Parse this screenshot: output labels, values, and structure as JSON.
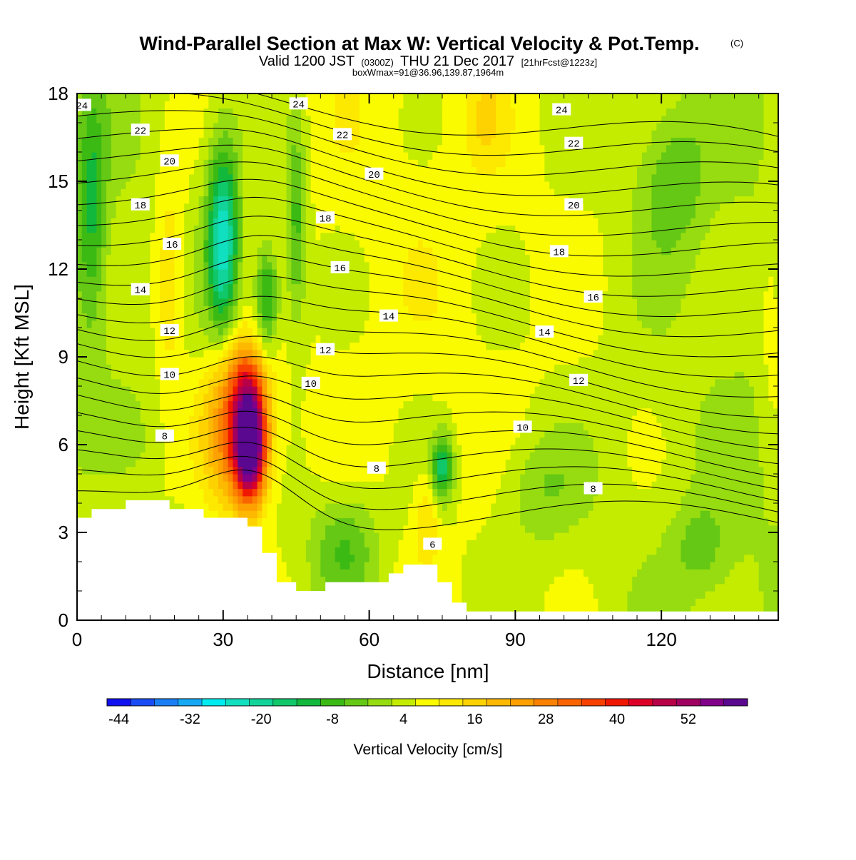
{
  "header": {
    "title": "Wind-Parallel Section at Max W: Vertical Velocity & Pot.Temp.",
    "title_mark": "(C)",
    "valid_prefix": "Valid 1200 JST",
    "valid_zulu": "(0300Z)",
    "valid_date": "THU 21 Dec 2017",
    "forecast": "[21hrFcst@1223z]",
    "box_info": "boxWmax=91@36.96,139.87,1964m"
  },
  "chart_data": {
    "type": "heatmap",
    "xlabel": "Distance [nm]",
    "ylabel": "Height [Kft MSL]",
    "xlim": [
      0,
      144
    ],
    "ylim": [
      0,
      18
    ],
    "x_ticks": [
      0,
      30,
      60,
      90,
      120
    ],
    "y_ticks": [
      0,
      3,
      6,
      9,
      12,
      15,
      18
    ],
    "colorbar": {
      "label": "Vertical Velocity [cm/s]",
      "min": -46,
      "max": 56,
      "step": 4,
      "tick_labels": [
        "-44",
        "-32",
        "-20",
        "-8",
        "4",
        "16",
        "28",
        "40",
        "52"
      ],
      "colors": [
        "#1010f0",
        "#1a4cf5",
        "#1a7ff5",
        "#14a8f5",
        "#00ecf0",
        "#10e0c0",
        "#12d49a",
        "#10c86a",
        "#12b83c",
        "#3cba14",
        "#64c814",
        "#96dc10",
        "#c4ec00",
        "#fbfb00",
        "#fde800",
        "#fdd200",
        "#fdb800",
        "#fda000",
        "#fb8200",
        "#fa6400",
        "#f84000",
        "#f01800",
        "#dc0028",
        "#b80048",
        "#a00060",
        "#80008a",
        "#5a0890"
      ]
    },
    "theta_contours": {
      "levels": [
        6,
        8,
        10,
        12,
        14,
        16,
        18,
        20,
        22,
        24
      ],
      "labels": [
        {
          "text": "24",
          "x": 1,
          "y": 17.6
        },
        {
          "text": "24",
          "x": 45.5,
          "y": 17.65
        },
        {
          "text": "24",
          "x": 99.5,
          "y": 17.45
        },
        {
          "text": "22",
          "x": 13,
          "y": 16.75
        },
        {
          "text": "22",
          "x": 54.5,
          "y": 16.6
        },
        {
          "text": "22",
          "x": 102,
          "y": 16.3
        },
        {
          "text": "20",
          "x": 19,
          "y": 15.7
        },
        {
          "text": "20",
          "x": 61,
          "y": 15.25
        },
        {
          "text": "20",
          "x": 102,
          "y": 14.2
        },
        {
          "text": "18",
          "x": 13,
          "y": 14.2
        },
        {
          "text": "18",
          "x": 51,
          "y": 13.75
        },
        {
          "text": "18",
          "x": 99,
          "y": 12.6
        },
        {
          "text": "16",
          "x": 19.5,
          "y": 12.85
        },
        {
          "text": "16",
          "x": 54,
          "y": 12.05
        },
        {
          "text": "16",
          "x": 106,
          "y": 11.05
        },
        {
          "text": "14",
          "x": 13,
          "y": 11.3
        },
        {
          "text": "14",
          "x": 64,
          "y": 10.4
        },
        {
          "text": "14",
          "x": 96,
          "y": 9.85
        },
        {
          "text": "12",
          "x": 19,
          "y": 9.9
        },
        {
          "text": "12",
          "x": 51,
          "y": 9.25
        },
        {
          "text": "12",
          "x": 103,
          "y": 8.2
        },
        {
          "text": "10",
          "x": 19,
          "y": 8.4
        },
        {
          "text": "10",
          "x": 48,
          "y": 8.1
        },
        {
          "text": "10",
          "x": 91.5,
          "y": 6.6
        },
        {
          "text": "8",
          "x": 18,
          "y": 6.3
        },
        {
          "text": "8",
          "x": 61.5,
          "y": 5.2
        },
        {
          "text": "8",
          "x": 106,
          "y": 4.5
        },
        {
          "text": "6",
          "x": 73,
          "y": 2.6
        }
      ]
    },
    "w_field_features": [
      {
        "kind": "updraft",
        "x": 35.5,
        "z": 6.0,
        "w": 55,
        "note": "maximum near 36 nm, 6 Kft"
      },
      {
        "kind": "updraft",
        "x": 19,
        "z": 11.5,
        "w": 10
      },
      {
        "kind": "updraft",
        "x": 72,
        "z": 3.5,
        "w": 8
      },
      {
        "kind": "updraft",
        "x": 84,
        "z": 17,
        "w": 6
      },
      {
        "kind": "updraft",
        "x": 143,
        "z": 10,
        "w": 6
      },
      {
        "kind": "downdraft",
        "x": 30,
        "z": 13,
        "w": -22
      },
      {
        "kind": "downdraft",
        "x": 39,
        "z": 11,
        "w": -18
      },
      {
        "kind": "downdraft",
        "x": 75,
        "z": 5.2,
        "w": -18
      },
      {
        "kind": "downdraft",
        "x": 3,
        "z": 14,
        "w": -10
      },
      {
        "kind": "downdraft",
        "x": 45,
        "z": 13.5,
        "w": -10
      },
      {
        "kind": "downdraft",
        "x": 55,
        "z": 2.5,
        "w": -8
      },
      {
        "kind": "downdraft",
        "x": 122,
        "z": 15,
        "w": -6
      }
    ],
    "terrain": [
      [
        0,
        3.5
      ],
      [
        3,
        3.8
      ],
      [
        10,
        4.1
      ],
      [
        19,
        3.8
      ],
      [
        26,
        3.5
      ],
      [
        35,
        3.2
      ],
      [
        38,
        2.3
      ],
      [
        41,
        1.3
      ],
      [
        45,
        1.0
      ],
      [
        51,
        1.3
      ],
      [
        55,
        1.3
      ],
      [
        64,
        1.6
      ],
      [
        67,
        1.9
      ],
      [
        74,
        1.3
      ],
      [
        77,
        0.6
      ],
      [
        80,
        0.3
      ],
      [
        144,
        0.3
      ]
    ]
  }
}
